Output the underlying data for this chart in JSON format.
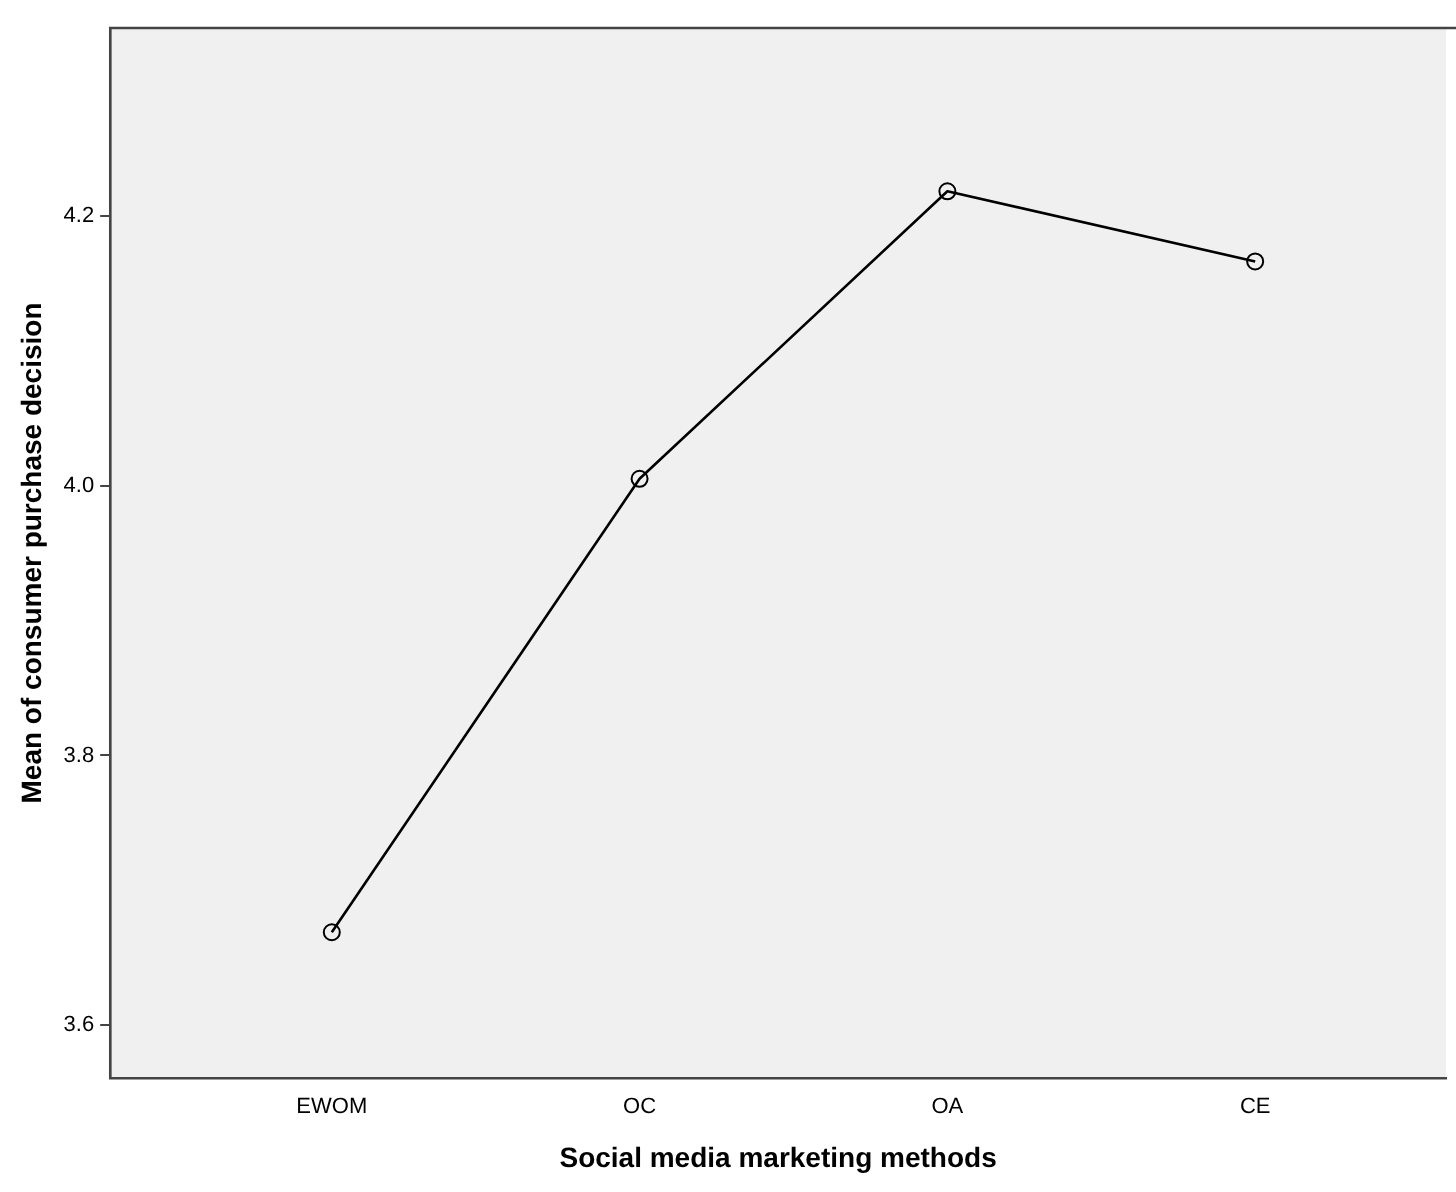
{
  "chart_data": {
    "type": "line",
    "xlabel": "Social media marketing methods",
    "ylabel": "Mean of consumer purchase decision",
    "categories": [
      "EWOM",
      "OC",
      "OA",
      "CE"
    ],
    "series": [
      {
        "color": "#000000",
        "values": [
          3.669,
          4.005,
          4.218,
          4.166
        ]
      }
    ],
    "ylim": [
      3.561,
      4.339
    ],
    "yticks": [
      {
        "value": 3.6,
        "label": "3.6"
      },
      {
        "value": 3.8,
        "label": "3.8"
      },
      {
        "value": 4,
        "label": "4.0"
      },
      {
        "value": 4.2,
        "label": "4.2"
      }
    ],
    "grid": false,
    "legend": false,
    "marker": "circle",
    "line_style": "solid"
  }
}
